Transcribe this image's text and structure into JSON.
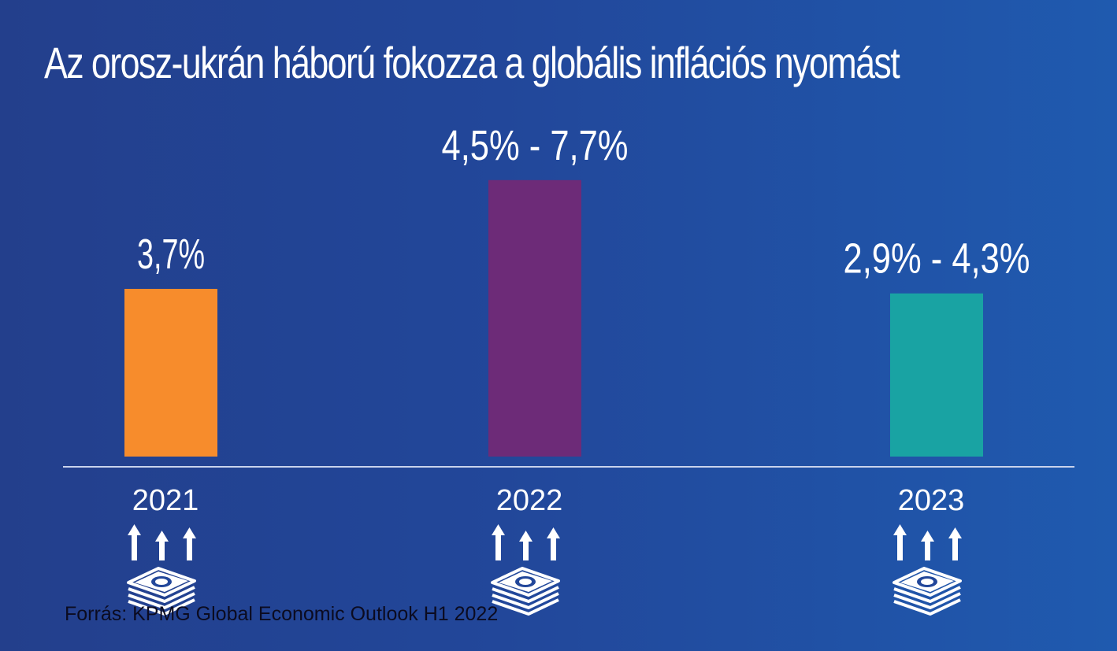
{
  "chart_data": {
    "type": "bar",
    "title": "Az orosz-ukrán háború fokozza a globális inflációs nyomást",
    "categories": [
      "2021",
      "2022",
      "2023"
    ],
    "value_labels": [
      "3,7%",
      "4,5% - 7,7%",
      "2,9% - 4,3%"
    ],
    "values": [
      3.7,
      6.1,
      3.6
    ],
    "ranges": [
      null,
      [
        4.5,
        7.7
      ],
      [
        2.9,
        4.3
      ]
    ],
    "bar_colors": [
      "#f78c2c",
      "#6d2b78",
      "#19a3a3"
    ],
    "ylim": [
      0,
      6.6
    ],
    "grid": false,
    "icon": "money-stack-arrows-up-icon"
  },
  "source": "Forrás: KPMG Global Economic Outlook H1 2022"
}
